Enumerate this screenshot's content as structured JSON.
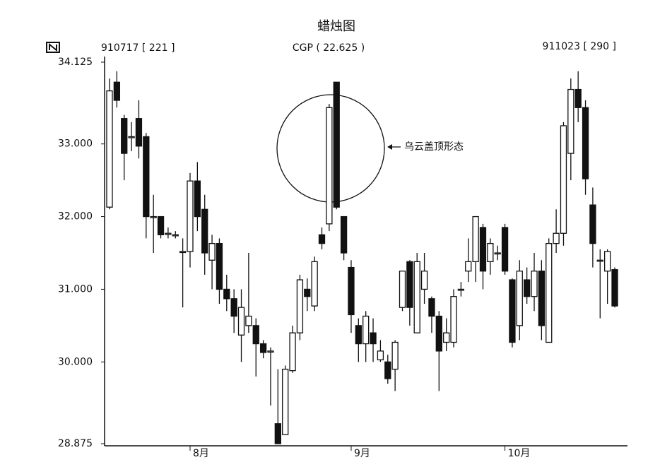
{
  "chart_data": {
    "type": "candlestick",
    "title": "蜡烛图",
    "left_label": "910717 [ 221 ]",
    "center_label": "CGP ( 22.625 )",
    "right_label": "911023 [ 290 ]",
    "annotation": "乌云盖顶形态",
    "up_color": "#ffffff",
    "down_color": "#111111",
    "ylim": [
      28.875,
      34.125
    ],
    "yticks": [
      {
        "value": 28.875,
        "label": "28.875"
      },
      {
        "value": 30,
        "label": "30.000"
      },
      {
        "value": 31,
        "label": "31.000"
      },
      {
        "value": 32,
        "label": "32.000"
      },
      {
        "value": 33,
        "label": "33.000"
      },
      {
        "value": 34.125,
        "label": "34.125"
      }
    ],
    "categories": [
      null,
      null,
      null,
      null,
      null,
      null,
      null,
      null,
      null,
      null,
      null,
      "8月",
      null,
      null,
      null,
      null,
      null,
      null,
      null,
      null,
      null,
      null,
      null,
      null,
      null,
      null,
      null,
      null,
      null,
      null,
      null,
      null,
      null,
      "9月",
      null,
      null,
      null,
      null,
      null,
      null,
      null,
      null,
      null,
      null,
      null,
      null,
      null,
      null,
      null,
      null,
      null,
      null,
      null,
      null,
      "10月",
      null,
      null,
      null,
      null,
      null,
      null,
      null,
      null,
      null,
      null,
      null,
      null,
      null,
      null,
      null
    ],
    "open": [
      32.13,
      33.85,
      33.35,
      33.1,
      33.35,
      33.1,
      32.0,
      32.0,
      31.77,
      31.75,
      31.52,
      31.52,
      32.49,
      32.1,
      31.4,
      31.63,
      31.0,
      30.87,
      30.37,
      30.5,
      30.5,
      30.25,
      30.15,
      29.15,
      29.0,
      29.88,
      30.4,
      31.0,
      30.77,
      31.75,
      31.9,
      33.85,
      32.0,
      31.3,
      30.5,
      30.25,
      30.4,
      30.03,
      30.0,
      29.9,
      30.75,
      31.38,
      30.4,
      31.0,
      30.87,
      30.63,
      30.27,
      30.27,
      31.0,
      31.25,
      31.38,
      31.85,
      31.38,
      31.5,
      31.85,
      31.13,
      30.5,
      31.13,
      30.9,
      31.25,
      30.27,
      31.63,
      31.77,
      32.87,
      33.75,
      33.5,
      32.16,
      31.4,
      31.25,
      31.27
    ],
    "high": [
      33.9,
      34.0,
      33.4,
      33.3,
      33.6,
      33.15,
      32.3,
      32.0,
      31.85,
      31.8,
      31.7,
      32.6,
      32.75,
      32.3,
      31.75,
      31.7,
      31.2,
      31.0,
      31.0,
      31.5,
      30.6,
      30.3,
      30.2,
      29.9,
      29.95,
      30.5,
      31.2,
      31.15,
      31.45,
      31.85,
      33.55,
      33.85,
      32.0,
      31.4,
      30.6,
      30.7,
      30.6,
      30.3,
      30.1,
      30.3,
      31.25,
      31.4,
      31.5,
      31.5,
      30.9,
      30.7,
      30.6,
      31.0,
      31.1,
      31.7,
      32.0,
      31.9,
      31.7,
      31.6,
      31.9,
      31.15,
      31.4,
      31.3,
      31.5,
      31.4,
      31.7,
      32.1,
      33.3,
      33.9,
      34.0,
      33.6,
      32.4,
      31.55,
      31.55,
      31.3
    ],
    "low": [
      32.1,
      33.5,
      32.5,
      32.9,
      32.8,
      31.7,
      31.5,
      31.7,
      31.7,
      31.7,
      30.75,
      31.3,
      31.8,
      31.2,
      31.0,
      30.8,
      30.7,
      30.4,
      30.0,
      30.4,
      29.8,
      30.05,
      29.4,
      28.875,
      29.0,
      29.85,
      30.3,
      30.7,
      30.7,
      31.55,
      31.8,
      32.1,
      31.4,
      30.4,
      30.0,
      30.0,
      30.0,
      30.0,
      29.7,
      29.6,
      30.7,
      30.5,
      30.4,
      30.8,
      30.4,
      29.6,
      30.15,
      30.2,
      30.9,
      31.1,
      31.1,
      31.0,
      31.2,
      31.4,
      31.2,
      30.2,
      30.3,
      30.8,
      30.7,
      30.3,
      30.27,
      31.5,
      31.6,
      32.5,
      33.3,
      32.3,
      31.3,
      30.6,
      30.8,
      30.75
    ],
    "close": [
      33.73,
      33.6,
      32.87,
      33.1,
      32.97,
      32.0,
      32.0,
      31.75,
      31.77,
      31.75,
      31.52,
      32.49,
      32.0,
      31.5,
      31.63,
      31.0,
      30.87,
      30.63,
      30.75,
      30.63,
      30.25,
      30.13,
      30.15,
      28.875,
      29.9,
      30.4,
      31.13,
      30.9,
      31.38,
      31.63,
      33.5,
      32.13,
      31.5,
      30.65,
      30.25,
      30.63,
      30.25,
      30.15,
      29.77,
      30.27,
      31.25,
      30.75,
      31.38,
      31.25,
      30.63,
      30.15,
      30.4,
      30.9,
      31.0,
      31.38,
      32.0,
      31.25,
      31.63,
      31.5,
      31.25,
      30.27,
      31.25,
      30.9,
      31.25,
      30.5,
      31.63,
      31.77,
      33.25,
      33.75,
      33.5,
      32.52,
      31.63,
      31.4,
      31.52,
      30.77
    ]
  }
}
